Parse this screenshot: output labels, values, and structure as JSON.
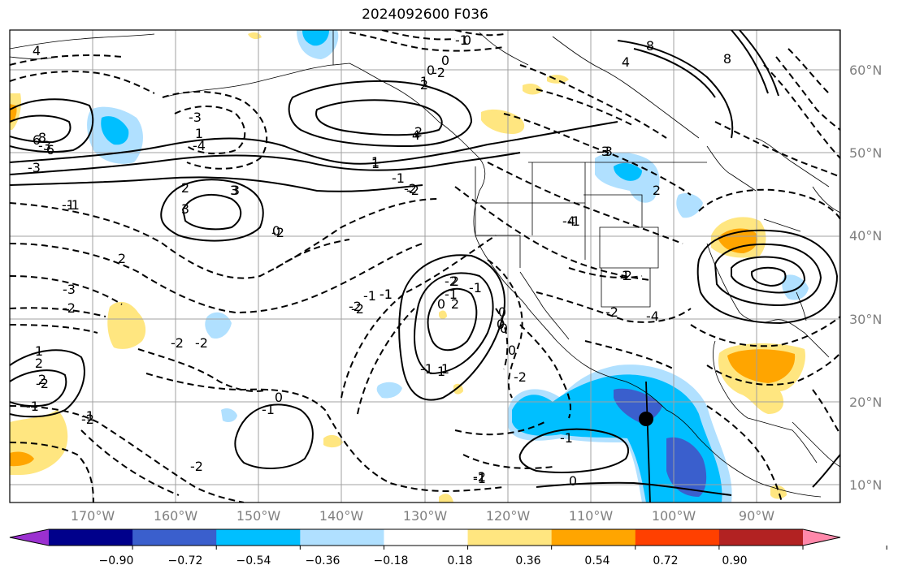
{
  "title": "2024092600 F036",
  "lat_labels": [
    "60°N",
    "50°N",
    "40°N",
    "30°N",
    "20°N",
    "10°N"
  ],
  "lon_labels": [
    "170°W",
    "160°W",
    "150°W",
    "140°W",
    "130°W",
    "120°W",
    "110°W",
    "100°W",
    "90°W"
  ],
  "colorbar": {
    "ticks": [
      "−0.90",
      "−0.72",
      "−0.54",
      "−0.36",
      "−0.18",
      "0.18",
      "0.36",
      "0.54",
      "0.72",
      "0.90"
    ],
    "colors": [
      "#9b30d0",
      "#00008b",
      "#3a5fcd",
      "#00bfff",
      "#b0e0ff",
      "#ffffff",
      "#ffe680",
      "#ffa500",
      "#ff4000",
      "#b22222",
      "#ff88aa"
    ]
  },
  "marker": {
    "name": "storm-center",
    "lon": -103.5,
    "lat": 18.0
  },
  "contour_labels": [
    "4",
    "8",
    "-1",
    "0",
    "-2",
    "2",
    "4",
    "8",
    "6",
    "8",
    "-3",
    "-4",
    "6",
    "-3",
    "-1",
    "-2",
    "1",
    "3",
    "-2",
    "2",
    "3",
    "-2",
    "-1",
    "-3",
    "2",
    "-2",
    "1",
    "-2",
    "2",
    "-1",
    "-2",
    "-1",
    "0",
    "1",
    "2",
    "-2",
    "-1",
    "0",
    "-1",
    "-2",
    "-1",
    "0",
    "-1",
    "-2",
    "1",
    "2",
    "-1",
    "0",
    "-2",
    "1",
    "3",
    "0",
    "-1",
    "-2",
    "2",
    "-1",
    "-4",
    "-2",
    "-2",
    "-4",
    "-3",
    "2",
    "4",
    "-3",
    "-2",
    "-1",
    "-2",
    "-1",
    "0",
    "1",
    "-1",
    "-1",
    "0",
    "-1",
    "0",
    "1",
    "2",
    "-2",
    "-3",
    "0",
    "1",
    "0"
  ]
}
